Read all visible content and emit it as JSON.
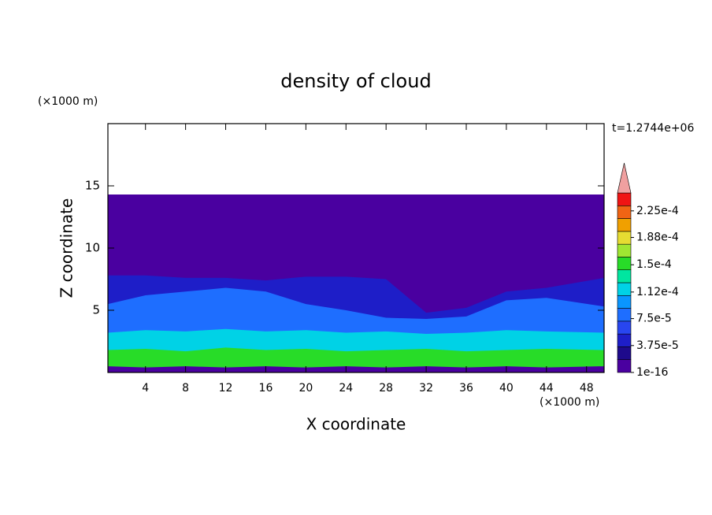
{
  "chart_data": {
    "type": "contour",
    "title": "density of cloud",
    "x_label": "X coordinate",
    "y_label": "Z coordinate",
    "x_unit": "(×1000 m)",
    "y_unit": "(×1000 m)",
    "time_label": "t=1.2744e+06",
    "xlim": [
      0.25,
      49.75
    ],
    "ylim": [
      0,
      20
    ],
    "xticks": [
      4,
      8,
      12,
      16,
      20,
      24,
      28,
      32,
      36,
      40,
      44,
      48
    ],
    "yticks": [
      5,
      10,
      15
    ],
    "x": [
      0.25,
      4,
      8,
      12,
      16,
      20,
      24,
      28,
      32,
      36,
      40,
      44,
      49.75
    ],
    "layers": [
      {
        "level": 1e-16,
        "top": [
          14.3,
          14.3,
          14.3,
          14.3,
          14.3,
          14.3,
          14.3,
          14.3,
          14.3,
          14.3,
          14.3,
          14.3,
          14.3
        ]
      },
      {
        "level": 3.75e-05,
        "top": [
          7.8,
          7.8,
          7.6,
          7.6,
          7.4,
          7.7,
          7.7,
          7.5,
          4.8,
          5.2,
          6.5,
          6.8,
          7.6
        ]
      },
      {
        "level": 7.5e-05,
        "top": [
          5.5,
          6.2,
          6.5,
          6.8,
          6.5,
          5.5,
          5.0,
          4.4,
          4.3,
          4.5,
          5.8,
          6.0,
          5.3
        ]
      },
      {
        "level": 0.0001125,
        "top": [
          3.2,
          3.4,
          3.3,
          3.5,
          3.3,
          3.4,
          3.2,
          3.3,
          3.1,
          3.2,
          3.4,
          3.3,
          3.2
        ]
      },
      {
        "level": 0.00015,
        "top": [
          1.8,
          1.9,
          1.7,
          2.0,
          1.8,
          1.9,
          1.7,
          1.8,
          1.9,
          1.7,
          1.8,
          1.9,
          1.8
        ]
      },
      {
        "level": 1e-16,
        "top": [
          0.5,
          0.4,
          0.5,
          0.4,
          0.5,
          0.4,
          0.5,
          0.4,
          0.5,
          0.4,
          0.5,
          0.4,
          0.5
        ]
      }
    ],
    "colorbar": {
      "lim": [
        0,
        0.00025
      ],
      "colors": [
        "#4a00a0",
        "#1e0a8c",
        "#1e1ec8",
        "#2846f0",
        "#1e6eff",
        "#0a96ff",
        "#00d2e6",
        "#00e6a0",
        "#28dc28",
        "#a0e632",
        "#e6dc32",
        "#f0a000",
        "#f06414",
        "#f01414"
      ],
      "extend_color": "#f0a0a0",
      "ticks": [
        1e-16,
        {
          "value": 3.75e-05,
          "label": "3.75e-5"
        },
        {
          "value": 7.5e-05,
          "label": "7.5e-5"
        },
        {
          "value": 0.000112,
          "label": "1.12e-4"
        },
        {
          "value": 0.00015,
          "label": "1.5e-4"
        },
        {
          "value": 0.000188,
          "label": "1.88e-4"
        },
        {
          "value": 0.000225,
          "label": "2.25e-4"
        }
      ]
    }
  }
}
